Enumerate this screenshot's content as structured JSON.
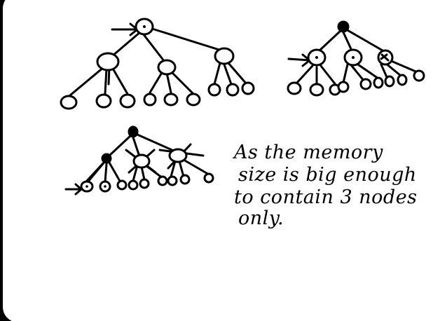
{
  "note": {
    "lines": [
      "As the memory",
      "size is big enough",
      "to contain 3 nodes",
      "only."
    ]
  },
  "colors": {
    "paper": "#ffffff",
    "ink": "#000000",
    "frame": "#000000"
  }
}
